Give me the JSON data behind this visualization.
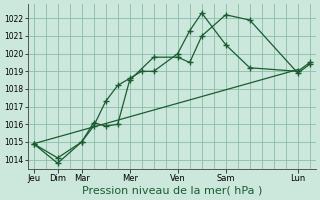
{
  "bg_color": "#cce8dc",
  "grid_color": "#8abcaa",
  "line_color": "#1a5c30",
  "xlabel": "Pression niveau de la mer( hPa )",
  "xlabel_fontsize": 8,
  "ylim": [
    1013.5,
    1022.8
  ],
  "yticks": [
    1014,
    1015,
    1016,
    1017,
    1018,
    1019,
    1020,
    1021,
    1022
  ],
  "day_labels": [
    "Jeu",
    "Dim",
    "Mar",
    "Mer",
    "Ven",
    "Sam",
    "Lun"
  ],
  "day_positions": [
    0,
    2,
    4,
    8,
    12,
    16,
    22
  ],
  "xlim": [
    -0.5,
    23.5
  ],
  "num_vgrid": 24,
  "series1_x": [
    0,
    2,
    4,
    5,
    6,
    7,
    8,
    10,
    12,
    13,
    14,
    16,
    18,
    22,
    23
  ],
  "series1_y": [
    1014.9,
    1014.1,
    1015.0,
    1016.1,
    1015.9,
    1016.0,
    1018.5,
    1019.8,
    1019.8,
    1019.5,
    1021.0,
    1022.2,
    1021.9,
    1018.9,
    1019.4
  ],
  "series2_x": [
    0,
    2,
    4,
    5,
    6,
    7,
    8,
    9,
    10,
    12,
    13,
    14,
    16,
    18,
    22,
    23
  ],
  "series2_y": [
    1014.9,
    1013.8,
    1015.0,
    1015.9,
    1017.3,
    1018.2,
    1018.6,
    1019.0,
    1019.0,
    1020.0,
    1021.3,
    1022.3,
    1020.5,
    1019.2,
    1019.0,
    1019.5
  ],
  "trend_x": [
    0,
    22
  ],
  "trend_y": [
    1014.9,
    1019.1
  ]
}
